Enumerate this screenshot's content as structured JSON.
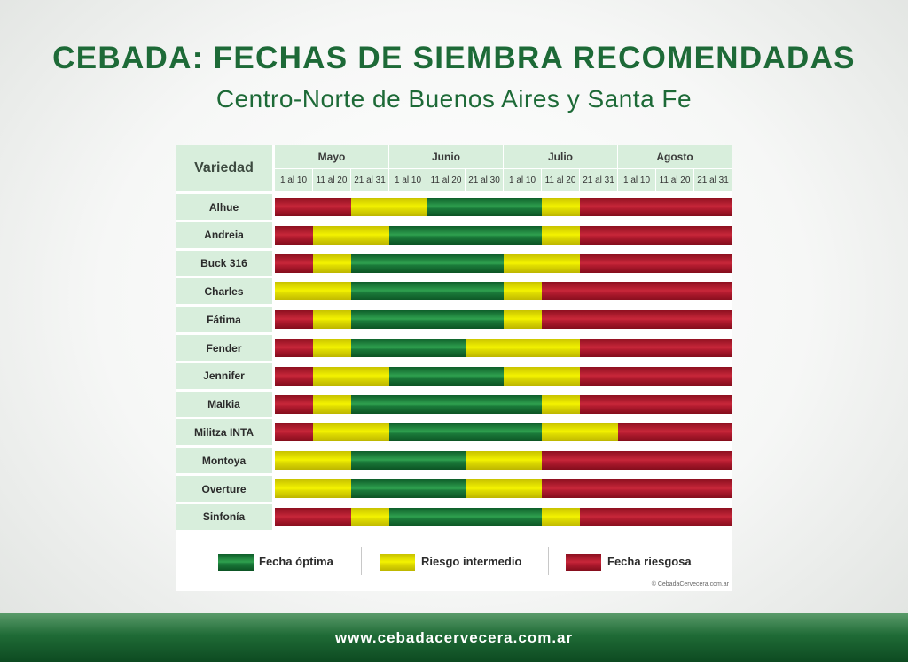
{
  "header": {
    "title": "CEBADA: FECHAS DE SIEMBRA RECOMENDADAS",
    "subtitle": "Centro-Norte de Buenos Aires y Santa Fe"
  },
  "colors": {
    "optimal": "#1f8a3e",
    "intermediate": "#f0ee00",
    "risky": "#c0222f",
    "header_bg": "#d8eedc",
    "brand_green": "#1d6a37"
  },
  "chart_data": {
    "type": "table",
    "row_header": "Variedad",
    "months": [
      "Mayo",
      "Junio",
      "Julio",
      "Agosto"
    ],
    "periods": [
      "1 al 10",
      "11 al 20",
      "21 al 31",
      "1 al 10",
      "11 al 20",
      "21 al 30",
      "1 al 10",
      "11 al 20",
      "21 al 31",
      "1 al 10",
      "11 al 20",
      "21 al 31"
    ],
    "rows": [
      {
        "variety": "Alhue",
        "segments": [
          [
            "red",
            2
          ],
          [
            "yellow",
            2
          ],
          [
            "green",
            3
          ],
          [
            "yellow",
            1
          ],
          [
            "red",
            4
          ]
        ]
      },
      {
        "variety": "Andreia",
        "segments": [
          [
            "red",
            1
          ],
          [
            "yellow",
            2
          ],
          [
            "green",
            4
          ],
          [
            "yellow",
            1
          ],
          [
            "red",
            4
          ]
        ]
      },
      {
        "variety": "Buck 316",
        "segments": [
          [
            "red",
            1
          ],
          [
            "yellow",
            1
          ],
          [
            "green",
            4
          ],
          [
            "yellow",
            2
          ],
          [
            "red",
            4
          ]
        ]
      },
      {
        "variety": "Charles",
        "segments": [
          [
            "yellow",
            2
          ],
          [
            "green",
            4
          ],
          [
            "yellow",
            1
          ],
          [
            "red",
            5
          ]
        ]
      },
      {
        "variety": "Fátima",
        "segments": [
          [
            "red",
            1
          ],
          [
            "yellow",
            1
          ],
          [
            "green",
            4
          ],
          [
            "yellow",
            1
          ],
          [
            "red",
            5
          ]
        ]
      },
      {
        "variety": "Fender",
        "segments": [
          [
            "red",
            1
          ],
          [
            "yellow",
            1
          ],
          [
            "green",
            3
          ],
          [
            "yellow",
            3
          ],
          [
            "red",
            4
          ]
        ]
      },
      {
        "variety": "Jennifer",
        "segments": [
          [
            "red",
            1
          ],
          [
            "yellow",
            2
          ],
          [
            "green",
            3
          ],
          [
            "yellow",
            2
          ],
          [
            "red",
            4
          ]
        ]
      },
      {
        "variety": "Malkia",
        "segments": [
          [
            "red",
            1
          ],
          [
            "yellow",
            1
          ],
          [
            "green",
            5
          ],
          [
            "yellow",
            1
          ],
          [
            "red",
            4
          ]
        ]
      },
      {
        "variety": "Militza INTA",
        "segments": [
          [
            "red",
            1
          ],
          [
            "yellow",
            2
          ],
          [
            "green",
            4
          ],
          [
            "yellow",
            2
          ],
          [
            "red",
            3
          ]
        ]
      },
      {
        "variety": "Montoya",
        "segments": [
          [
            "yellow",
            2
          ],
          [
            "green",
            3
          ],
          [
            "yellow",
            2
          ],
          [
            "red",
            5
          ]
        ]
      },
      {
        "variety": "Overture",
        "segments": [
          [
            "yellow",
            2
          ],
          [
            "green",
            3
          ],
          [
            "yellow",
            2
          ],
          [
            "red",
            5
          ]
        ]
      },
      {
        "variety": "Sinfonía",
        "segments": [
          [
            "red",
            2
          ],
          [
            "yellow",
            1
          ],
          [
            "green",
            4
          ],
          [
            "yellow",
            1
          ],
          [
            "red",
            4
          ]
        ]
      }
    ],
    "legend": [
      {
        "key": "green",
        "label": "Fecha óptima"
      },
      {
        "key": "yellow",
        "label": "Riesgo intermedio"
      },
      {
        "key": "red",
        "label": "Fecha riesgosa"
      }
    ]
  },
  "credit": "© CebadaCervecera.com.ar",
  "footer": {
    "url": "www.cebadacervecera.com.ar"
  }
}
